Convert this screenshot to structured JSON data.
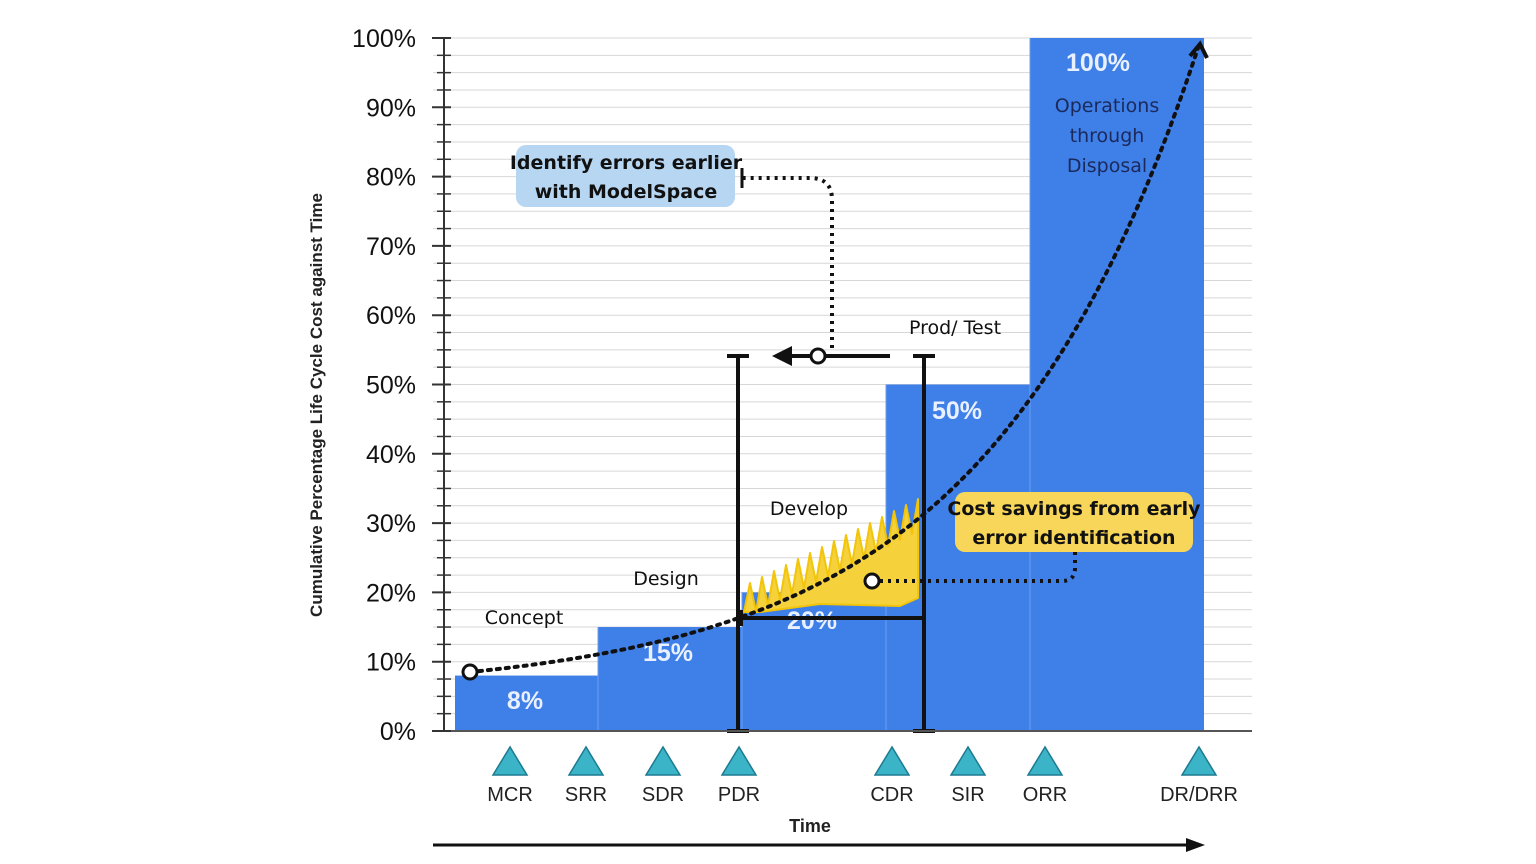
{
  "chart_data": {
    "type": "bar",
    "ylabel": "Cumulative Percentage Life Cycle Cost against Time",
    "xlabel": "Time",
    "ylim": [
      0,
      100
    ],
    "y_ticks": [
      "0%",
      "10%",
      "20%",
      "30%",
      "40%",
      "50%",
      "60%",
      "70%",
      "80%",
      "90%",
      "100%"
    ],
    "grid": true,
    "phases": [
      {
        "name": "Concept",
        "value": 8,
        "label": "8%"
      },
      {
        "name": "Design",
        "value": 15,
        "label": "15%"
      },
      {
        "name": "Develop",
        "value": 20,
        "label": "20%"
      },
      {
        "name": "Prod/ Test",
        "value": 50,
        "label": "50%"
      },
      {
        "name": "Operations through Disposal",
        "value": 100,
        "label": "100%"
      }
    ],
    "ops_text": [
      "Operations",
      "through",
      "Disposal"
    ],
    "milestones": [
      "MCR",
      "SRR",
      "SDR",
      "PDR",
      "CDR",
      "SIR",
      "ORR",
      "DR/DRR"
    ],
    "annotations": {
      "earlier": [
        "Identify errors earlier",
        "with ModelSpace"
      ],
      "savings": [
        "Cost savings from early",
        "error identification"
      ]
    },
    "colors": {
      "bar": "#3f7fe8",
      "milestone": "#3cb4c8",
      "callout_blue": "#b7d6f2",
      "callout_yellow": "#f7d65a",
      "savings_fill": "#f5d13c"
    }
  }
}
